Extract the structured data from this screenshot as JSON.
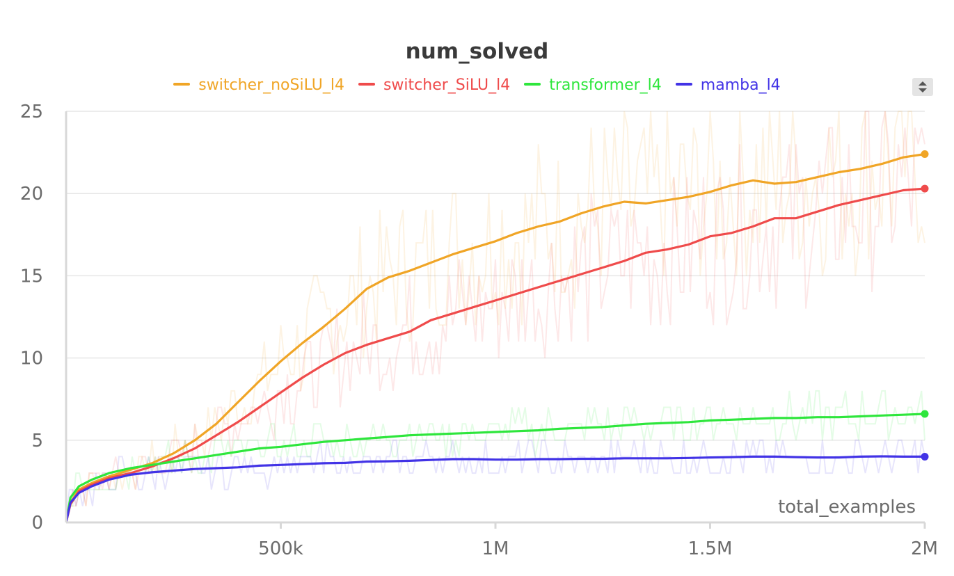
{
  "chart_data": {
    "type": "line",
    "title": "num_solved",
    "xlabel": "total_examples",
    "ylabel": "",
    "xlim": [
      0,
      2000000
    ],
    "ylim": [
      0,
      25
    ],
    "xticks": [
      500000,
      1000000,
      1500000,
      2000000
    ],
    "xtick_labels": [
      "500k",
      "1M",
      "1.5M",
      "2M"
    ],
    "yticks": [
      0,
      5,
      10,
      15,
      20,
      25
    ],
    "ytick_labels": [
      "0",
      "5",
      "10",
      "15",
      "20",
      "25"
    ],
    "grid": true,
    "legend_position": "top",
    "series": [
      {
        "name": "switcher_noSiLU_l4",
        "color": "#f0a526",
        "x": [
          0,
          10000,
          30000,
          60000,
          100000,
          150000,
          200000,
          250000,
          300000,
          350000,
          400000,
          450000,
          500000,
          550000,
          600000,
          650000,
          700000,
          750000,
          800000,
          850000,
          900000,
          950000,
          1000000,
          1050000,
          1100000,
          1150000,
          1200000,
          1250000,
          1300000,
          1350000,
          1400000,
          1450000,
          1500000,
          1550000,
          1600000,
          1650000,
          1700000,
          1750000,
          1800000,
          1850000,
          1900000,
          1950000,
          2000000
        ],
        "y": [
          0,
          1.2,
          2.0,
          2.4,
          2.8,
          3.2,
          3.6,
          4.2,
          5.0,
          6.0,
          7.3,
          8.6,
          9.8,
          10.9,
          11.9,
          13.0,
          14.2,
          14.9,
          15.3,
          15.8,
          16.3,
          16.7,
          17.1,
          17.6,
          18.0,
          18.3,
          18.8,
          19.2,
          19.5,
          19.4,
          19.6,
          19.8,
          20.1,
          20.5,
          20.8,
          20.6,
          20.7,
          21.0,
          21.3,
          21.5,
          21.8,
          22.2,
          22.4
        ]
      },
      {
        "name": "switcher_SiLU_l4",
        "color": "#ef4b4b",
        "x": [
          0,
          10000,
          30000,
          60000,
          100000,
          150000,
          200000,
          250000,
          300000,
          350000,
          400000,
          450000,
          500000,
          550000,
          600000,
          650000,
          700000,
          750000,
          800000,
          850000,
          900000,
          950000,
          1000000,
          1050000,
          1100000,
          1150000,
          1200000,
          1250000,
          1300000,
          1350000,
          1400000,
          1450000,
          1500000,
          1550000,
          1600000,
          1650000,
          1700000,
          1750000,
          1800000,
          1850000,
          1900000,
          1950000,
          2000000
        ],
        "y": [
          0,
          1.1,
          1.9,
          2.3,
          2.7,
          3.0,
          3.4,
          3.9,
          4.5,
          5.3,
          6.1,
          7.0,
          7.9,
          8.8,
          9.6,
          10.3,
          10.8,
          11.2,
          11.6,
          12.3,
          12.7,
          13.1,
          13.5,
          13.9,
          14.3,
          14.7,
          15.1,
          15.5,
          15.9,
          16.4,
          16.6,
          16.9,
          17.4,
          17.6,
          18.0,
          18.5,
          18.5,
          18.9,
          19.3,
          19.6,
          19.9,
          20.2,
          20.3
        ]
      },
      {
        "name": "transformer_l4",
        "color": "#2ee63c",
        "x": [
          0,
          10000,
          30000,
          60000,
          100000,
          150000,
          200000,
          250000,
          300000,
          350000,
          400000,
          450000,
          500000,
          550000,
          600000,
          650000,
          700000,
          750000,
          800000,
          850000,
          900000,
          950000,
          1000000,
          1050000,
          1100000,
          1150000,
          1200000,
          1250000,
          1300000,
          1350000,
          1400000,
          1450000,
          1500000,
          1550000,
          1600000,
          1650000,
          1700000,
          1750000,
          1800000,
          1850000,
          1900000,
          1950000,
          2000000
        ],
        "y": [
          0,
          1.5,
          2.2,
          2.6,
          3.0,
          3.3,
          3.5,
          3.7,
          3.9,
          4.1,
          4.3,
          4.5,
          4.6,
          4.75,
          4.9,
          5.0,
          5.1,
          5.2,
          5.3,
          5.35,
          5.4,
          5.45,
          5.5,
          5.55,
          5.6,
          5.7,
          5.75,
          5.8,
          5.9,
          6.0,
          6.05,
          6.1,
          6.2,
          6.25,
          6.3,
          6.35,
          6.35,
          6.4,
          6.4,
          6.45,
          6.5,
          6.55,
          6.6
        ]
      },
      {
        "name": "mamba_l4",
        "color": "#4233e6",
        "x": [
          0,
          10000,
          30000,
          60000,
          100000,
          150000,
          200000,
          250000,
          300000,
          350000,
          400000,
          450000,
          500000,
          550000,
          600000,
          650000,
          700000,
          750000,
          800000,
          850000,
          900000,
          950000,
          1000000,
          1050000,
          1100000,
          1150000,
          1200000,
          1250000,
          1300000,
          1350000,
          1400000,
          1450000,
          1500000,
          1550000,
          1600000,
          1650000,
          1700000,
          1750000,
          1800000,
          1850000,
          1900000,
          1950000,
          2000000
        ],
        "y": [
          0,
          1.2,
          1.8,
          2.2,
          2.6,
          2.9,
          3.05,
          3.15,
          3.25,
          3.3,
          3.35,
          3.45,
          3.5,
          3.55,
          3.6,
          3.62,
          3.7,
          3.72,
          3.75,
          3.8,
          3.85,
          3.85,
          3.82,
          3.82,
          3.85,
          3.85,
          3.87,
          3.87,
          3.9,
          3.9,
          3.9,
          3.92,
          3.95,
          3.97,
          4.0,
          4.0,
          3.97,
          3.95,
          3.95,
          4.0,
          4.02,
          4.0,
          4.0
        ]
      }
    ]
  },
  "ui": {
    "legend_scroll_icon": "up-down-chevrons-icon"
  }
}
